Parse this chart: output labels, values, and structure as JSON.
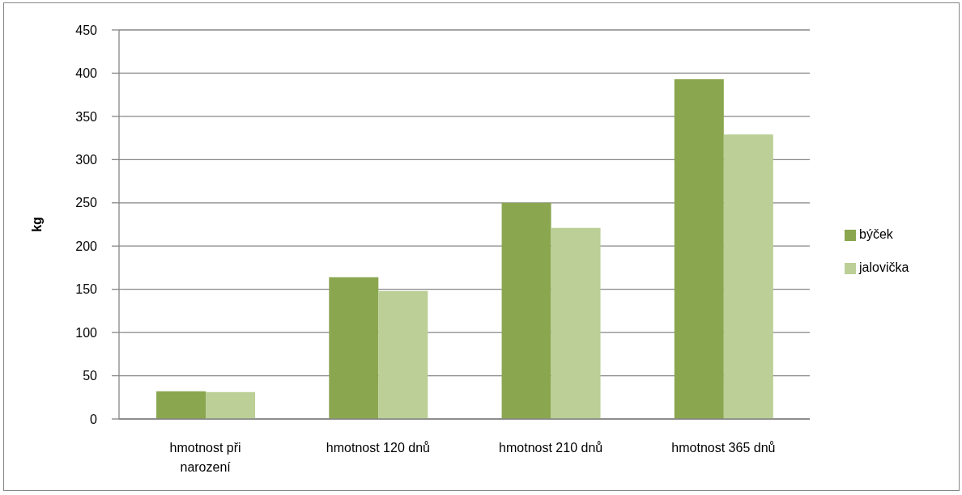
{
  "chart_data": {
    "type": "bar",
    "ylabel": "kg",
    "categories": [
      "hmotnost při narození",
      "hmotnost 120 dnů",
      "hmotnost 210 dnů",
      "hmotnost 365 dnů"
    ],
    "series": [
      {
        "name": "býček",
        "color": "#8aa64f",
        "values": [
          32,
          164,
          250,
          393
        ]
      },
      {
        "name": "jalovička",
        "color": "#bbcf96",
        "values": [
          31,
          148,
          221,
          329
        ]
      }
    ],
    "ylim": [
      0,
      450
    ],
    "yticks": [
      0,
      50,
      100,
      150,
      200,
      250,
      300,
      350,
      400,
      450
    ],
    "grid": "y",
    "legend": "right"
  }
}
